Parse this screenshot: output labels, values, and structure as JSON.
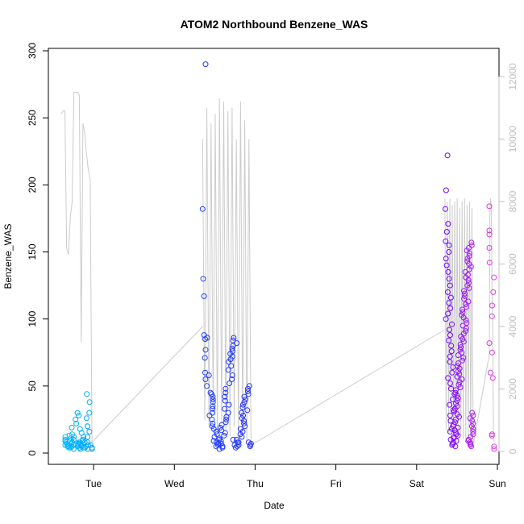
{
  "chart_data": {
    "type": "scatter",
    "title": "ATOM2 Northbound Benzene_WAS",
    "xlabel": "Date",
    "ylabel": "Benzene_WAS",
    "x_unit": "day (1 = Tue 00:00)",
    "x_range": [
      0.44,
      6.02
    ],
    "ylim": [
      0,
      300
    ],
    "y_ticks": [
      0,
      50,
      100,
      150,
      200,
      250,
      300
    ],
    "x_ticks": [
      {
        "value": 1,
        "label": "Tue"
      },
      {
        "value": 2,
        "label": "Wed"
      },
      {
        "value": 3,
        "label": "Thu"
      },
      {
        "value": 4,
        "label": "Fri"
      },
      {
        "value": 5,
        "label": "Sat"
      },
      {
        "value": 6,
        "label": "Sun"
      }
    ],
    "y2lim": [
      -500,
      12500
    ],
    "y2_ticks": [
      0,
      2000,
      4000,
      6000,
      8000,
      10000,
      12000
    ],
    "y2_color": "#c0c0c0",
    "altitude_color": "#cccccc",
    "point_color_start": "#00bfff",
    "point_color_mid": "#1a3fff",
    "point_color_mid2": "#6a00ff",
    "point_color_end": "#e040e0",
    "grid": false,
    "legend": "none",
    "series": [
      {
        "group": "Tue",
        "x_start": 0.65,
        "x_end": 0.98,
        "y": [
          6,
          8,
          10,
          12,
          7,
          5,
          9,
          11,
          13,
          4,
          6,
          8,
          19,
          5,
          7,
          9,
          3,
          4,
          6,
          12,
          14,
          5,
          7,
          8,
          10,
          22,
          18,
          25,
          30,
          28,
          8,
          6,
          5,
          4,
          3,
          4,
          5,
          6,
          7,
          8,
          9,
          10,
          15,
          20,
          12,
          6,
          5,
          4,
          3,
          44,
          38,
          30,
          26,
          20,
          16,
          12,
          8,
          6,
          4,
          3
        ]
      },
      {
        "group": "Wed-Thu",
        "x_start": 2.35,
        "x_end": 2.95,
        "y": [
          290,
          182,
          130,
          117,
          88,
          86,
          85,
          77,
          71,
          60,
          58,
          55,
          50,
          45,
          44,
          42,
          40,
          38,
          35,
          33,
          30,
          28,
          25,
          22,
          20,
          18,
          16,
          14,
          12,
          10,
          9,
          8,
          7,
          6,
          5,
          4,
          3,
          5,
          7,
          9,
          11,
          13,
          15,
          17,
          19,
          21,
          23,
          25,
          27,
          30,
          33,
          36,
          39,
          42,
          45,
          48,
          52,
          55,
          58,
          62,
          65,
          68,
          70,
          72,
          74,
          76,
          78,
          80,
          82,
          84,
          86,
          10,
          8,
          6,
          5,
          4,
          6,
          8,
          10,
          12,
          14,
          16,
          18,
          20,
          22,
          24,
          26,
          28,
          30,
          32,
          34,
          36,
          38,
          40,
          42,
          44,
          46,
          48,
          50,
          7,
          6,
          5,
          8
        ]
      },
      {
        "group": "Sat",
        "x_start": 5.35,
        "x_end": 5.7,
        "y": [
          222,
          196,
          182,
          171,
          165,
          158,
          155,
          150,
          145,
          140,
          135,
          130,
          125,
          120,
          116,
          112,
          108,
          104,
          100,
          96,
          92,
          88,
          84,
          80,
          76,
          72,
          68,
          64,
          60,
          56,
          52,
          48,
          44,
          40,
          36,
          32,
          28,
          24,
          20,
          18,
          16,
          14,
          12,
          10,
          8,
          6,
          5,
          7,
          9,
          11,
          13,
          15,
          17,
          19,
          21,
          23,
          25,
          27,
          29,
          31,
          33,
          35,
          37,
          39,
          41,
          43,
          45,
          47,
          49,
          51,
          53,
          55,
          57,
          59,
          61,
          63,
          65,
          67,
          69,
          71,
          73,
          75,
          77,
          79,
          81,
          83,
          85,
          87,
          89,
          91,
          93,
          95,
          97,
          99,
          101,
          103,
          105,
          107,
          109,
          111,
          113,
          115,
          117,
          119,
          121,
          123,
          125,
          127,
          129,
          131,
          133,
          135,
          137,
          139,
          141,
          143,
          145,
          147,
          149,
          151,
          153,
          155,
          157,
          7,
          6,
          5,
          8,
          9,
          10,
          12,
          14,
          16,
          18,
          20,
          22,
          24,
          26,
          28,
          30
        ]
      },
      {
        "group": "Sun",
        "x_start": 5.9,
        "x_end": 5.96,
        "y": [
          184,
          166,
          163,
          153,
          142,
          131,
          120,
          110,
          102,
          82,
          75,
          60,
          56,
          14,
          13,
          5,
          3
        ]
      }
    ],
    "altitude_segments": [
      {
        "x_start": 0.6,
        "x_end": 0.98,
        "values": [
          10800,
          10900,
          10900,
          6500,
          6300,
          7500,
          8000,
          11500,
          11500,
          11500,
          11400,
          3500,
          10500,
          10200,
          9500,
          9000,
          8700,
          300
        ]
      },
      {
        "x_start": 2.35,
        "x_end": 2.95,
        "values": [
          10000,
          1000,
          11000,
          800,
          10500,
          1200,
          10800,
          600,
          11300,
          900,
          11200,
          700,
          10900,
          500,
          11000,
          800,
          10000,
          400,
          11200,
          600,
          10600,
          300,
          10000,
          200
        ]
      },
      {
        "x_start": 5.35,
        "x_end": 5.7,
        "values": [
          8100,
          700,
          8000,
          600,
          8100,
          800,
          7900,
          500,
          8000,
          700,
          8100,
          600,
          7800,
          500,
          8000,
          400,
          8100,
          300,
          7900,
          400,
          8000,
          300,
          7800,
          200
        ]
      },
      {
        "x_start": 5.9,
        "x_end": 5.96,
        "values": [
          3100,
          7800,
          8100,
          7700,
          5000,
          3800,
          600,
          300
        ]
      }
    ],
    "altitude_connectors": [
      {
        "x1": 0.98,
        "y1": 300,
        "x2": 2.35,
        "y2": 4000
      },
      {
        "x1": 2.95,
        "y1": 200,
        "x2": 5.35,
        "y2": 3900
      },
      {
        "x1": 5.7,
        "y1": 200,
        "x2": 5.9,
        "y2": 3100
      }
    ]
  }
}
